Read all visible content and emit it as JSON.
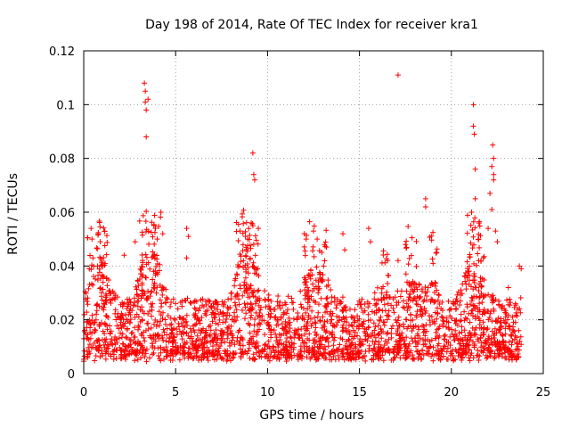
{
  "colors": {
    "series": "#ff0000",
    "axis": "#000000",
    "grid": "#a0a0a0"
  },
  "chart_data": {
    "type": "scatter",
    "title": "Day 198 of 2014, Rate Of TEC Index for receiver kra1",
    "xlabel": "GPS time / hours",
    "ylabel": "ROTI / TECUs",
    "xlim": [
      0,
      25
    ],
    "ylim": [
      0,
      0.12
    ],
    "xticks": [
      0,
      5,
      10,
      15,
      20,
      25
    ],
    "xtick_labels": [
      "0",
      "5",
      "10",
      "15",
      "20",
      "25"
    ],
    "yticks": [
      0,
      0.02,
      0.04,
      0.06,
      0.08,
      0.1,
      0.12
    ],
    "ytick_labels": [
      "0",
      "0.02",
      "0.04",
      "0.06",
      "0.08",
      "0.1",
      "0.12"
    ],
    "grid": true,
    "marker": "+",
    "series": [
      {
        "name": "ROTI",
        "description": "dense band of points mostly between 0.005 and 0.03 TECU across 0-24 h",
        "band": {
          "x_start": 0.0,
          "x_end": 23.8,
          "typical_low": 0.006,
          "typical_high": 0.028
        },
        "outliers": [
          {
            "x": 0.4,
            "y": 0.054
          },
          {
            "x": 0.45,
            "y": 0.05
          },
          {
            "x": 0.5,
            "y": 0.043
          },
          {
            "x": 0.9,
            "y": 0.049
          },
          {
            "x": 2.2,
            "y": 0.044
          },
          {
            "x": 2.8,
            "y": 0.049
          },
          {
            "x": 3.3,
            "y": 0.108
          },
          {
            "x": 3.35,
            "y": 0.105
          },
          {
            "x": 3.35,
            "y": 0.101
          },
          {
            "x": 3.4,
            "y": 0.098
          },
          {
            "x": 3.4,
            "y": 0.088
          },
          {
            "x": 3.5,
            "y": 0.102
          },
          {
            "x": 3.9,
            "y": 0.054
          },
          {
            "x": 4.0,
            "y": 0.05
          },
          {
            "x": 4.2,
            "y": 0.06
          },
          {
            "x": 4.3,
            "y": 0.052
          },
          {
            "x": 5.6,
            "y": 0.054
          },
          {
            "x": 5.7,
            "y": 0.051
          },
          {
            "x": 5.6,
            "y": 0.043
          },
          {
            "x": 8.5,
            "y": 0.053
          },
          {
            "x": 8.8,
            "y": 0.051
          },
          {
            "x": 9.2,
            "y": 0.082
          },
          {
            "x": 9.25,
            "y": 0.074
          },
          {
            "x": 9.3,
            "y": 0.072
          },
          {
            "x": 9.2,
            "y": 0.055
          },
          {
            "x": 9.5,
            "y": 0.054
          },
          {
            "x": 12.0,
            "y": 0.052
          },
          {
            "x": 12.5,
            "y": 0.053
          },
          {
            "x": 12.7,
            "y": 0.05
          },
          {
            "x": 13.1,
            "y": 0.048
          },
          {
            "x": 14.1,
            "y": 0.052
          },
          {
            "x": 14.2,
            "y": 0.046
          },
          {
            "x": 15.5,
            "y": 0.054
          },
          {
            "x": 15.6,
            "y": 0.049
          },
          {
            "x": 17.1,
            "y": 0.111
          },
          {
            "x": 17.1,
            "y": 0.042
          },
          {
            "x": 17.5,
            "y": 0.048
          },
          {
            "x": 18.6,
            "y": 0.065
          },
          {
            "x": 18.6,
            "y": 0.062
          },
          {
            "x": 19.0,
            "y": 0.041
          },
          {
            "x": 21.1,
            "y": 0.06
          },
          {
            "x": 21.2,
            "y": 0.1
          },
          {
            "x": 21.2,
            "y": 0.092
          },
          {
            "x": 21.25,
            "y": 0.089
          },
          {
            "x": 21.3,
            "y": 0.076
          },
          {
            "x": 21.3,
            "y": 0.065
          },
          {
            "x": 21.5,
            "y": 0.056
          },
          {
            "x": 22.0,
            "y": 0.054
          },
          {
            "x": 22.1,
            "y": 0.067
          },
          {
            "x": 22.2,
            "y": 0.077
          },
          {
            "x": 22.25,
            "y": 0.085
          },
          {
            "x": 22.3,
            "y": 0.08
          },
          {
            "x": 22.3,
            "y": 0.074
          },
          {
            "x": 22.3,
            "y": 0.072
          },
          {
            "x": 22.2,
            "y": 0.061
          },
          {
            "x": 22.4,
            "y": 0.053
          },
          {
            "x": 22.5,
            "y": 0.049
          },
          {
            "x": 23.1,
            "y": 0.032
          },
          {
            "x": 23.7,
            "y": 0.04
          },
          {
            "x": 23.8,
            "y": 0.039
          }
        ]
      }
    ]
  }
}
